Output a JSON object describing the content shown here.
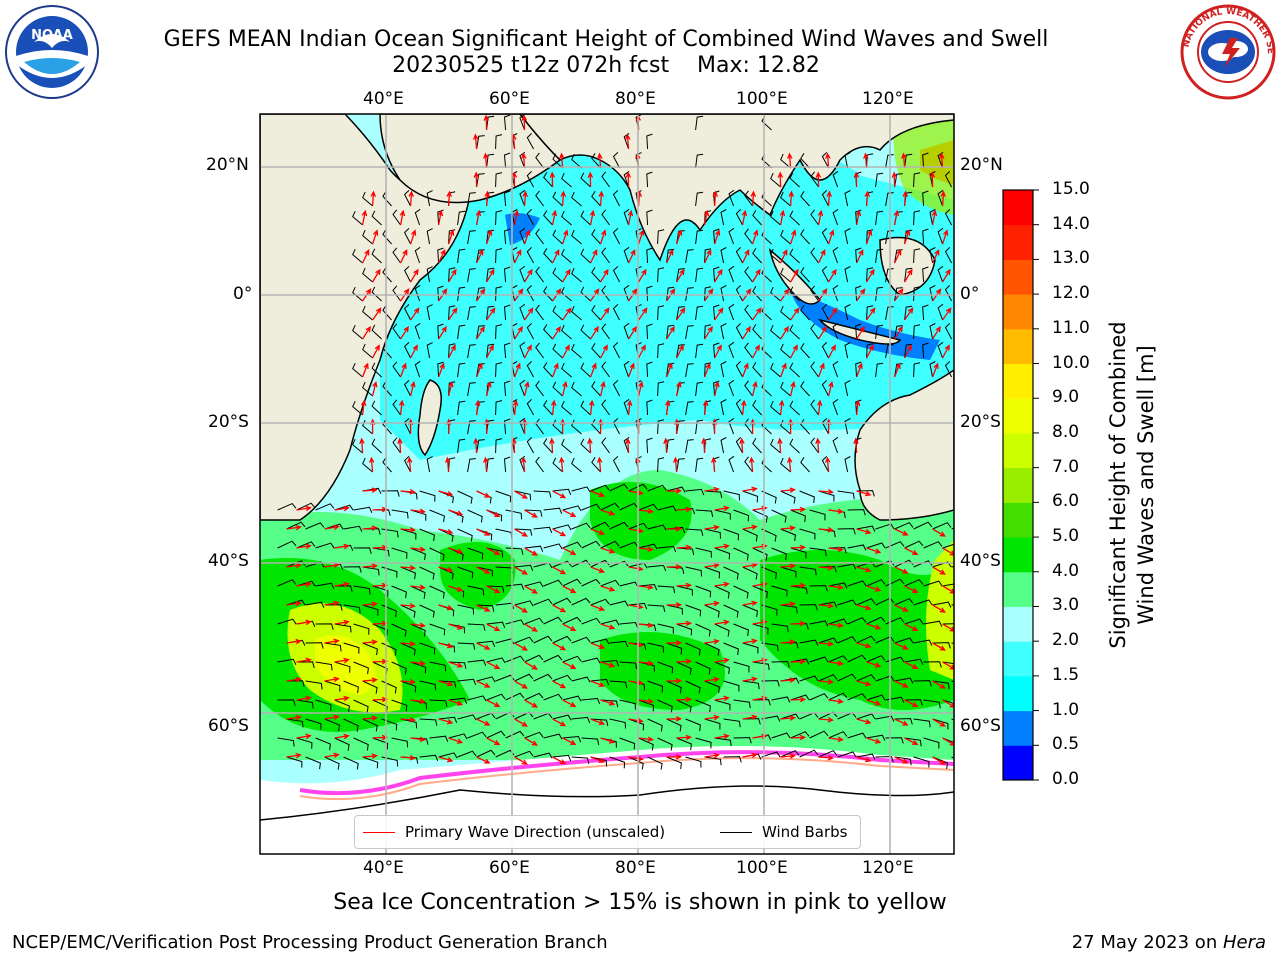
{
  "header": {
    "title_line1": "GEFS MEAN Indian Ocean Significant Height of Combined Wind Waves and Swell",
    "title_line2": "20230525 t12z 072h fcst    Max: 12.82"
  },
  "logos": {
    "left": {
      "name": "noaa-logo",
      "text": "NOAA"
    },
    "right": {
      "name": "nws-logo",
      "text": "NATIONAL WEATHER SERVICE"
    }
  },
  "map": {
    "lon_labels": [
      "40°E",
      "60°E",
      "80°E",
      "100°E",
      "120°E"
    ],
    "lat_labels": [
      "20°N",
      "0°",
      "20°S",
      "40°S",
      "60°S"
    ],
    "colors": {
      "land": "#efeedc",
      "ice": "#ffffff",
      "ocean_low": "#aaffff",
      "grid": "#b4b4b4",
      "wave_arrow": "#ff0000",
      "wind_barb": "#000000"
    },
    "legend": {
      "wave_direction": "Primary Wave Direction (unscaled)",
      "wind_barbs": "Wind Barbs"
    },
    "footnote": "Sea Ice Concentration > 15% is shown in pink to yellow"
  },
  "colorbar": {
    "title_line1": "Significant Height of Combined",
    "title_line2": "Wind Waves and Swell [m]",
    "ticks": [
      "0.0",
      "0.5",
      "1.0",
      "1.5",
      "2.0",
      "3.0",
      "4.0",
      "5.0",
      "6.0",
      "7.0",
      "8.0",
      "9.0",
      "10.0",
      "11.0",
      "12.0",
      "13.0",
      "14.0",
      "15.0"
    ],
    "colors": [
      "#0000ff",
      "#0080ff",
      "#00ffff",
      "#40ffff",
      "#aaffff",
      "#55ff88",
      "#00e600",
      "#44dd00",
      "#99ee00",
      "#ccff00",
      "#eeff00",
      "#ffee00",
      "#ffbb00",
      "#ff8800",
      "#ff5500",
      "#ff2200",
      "#ff0000"
    ]
  },
  "footer": {
    "left": "NCEP/EMC/Verification Post Processing Product Generation Branch",
    "right_date": "27 May 2023 on ",
    "right_host": "Hera"
  }
}
